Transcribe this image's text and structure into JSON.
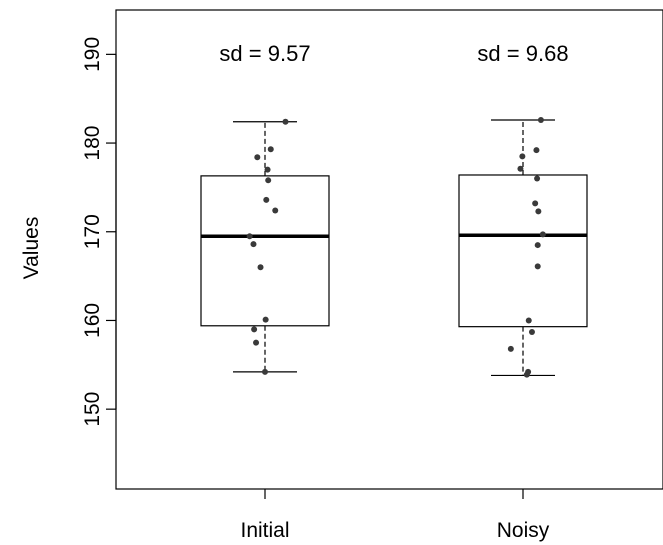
{
  "chart_data": {
    "type": "boxplot",
    "title": "",
    "xlabel": "",
    "ylabel": "Values",
    "ylim": [
      141,
      195
    ],
    "yticks": [
      150,
      160,
      170,
      180,
      190
    ],
    "grid": false,
    "legend": "none",
    "categories": [
      "Initial",
      "Noisy"
    ],
    "annotations": [
      "sd = 9.57",
      "sd = 9.68"
    ],
    "boxes": [
      {
        "name": "Initial",
        "whisker_low": 154.2,
        "q1": 159.4,
        "median": 169.5,
        "q3": 176.3,
        "whisker_high": 182.4,
        "points": [
          {
            "y": 182.4,
            "jitter": 0.32
          },
          {
            "y": 179.3,
            "jitter": 0.09
          },
          {
            "y": 178.4,
            "jitter": -0.12
          },
          {
            "y": 177.0,
            "jitter": 0.04
          },
          {
            "y": 175.8,
            "jitter": 0.05
          },
          {
            "y": 173.6,
            "jitter": 0.02
          },
          {
            "y": 172.4,
            "jitter": 0.16
          },
          {
            "y": 169.5,
            "jitter": -0.24
          },
          {
            "y": 168.6,
            "jitter": -0.18
          },
          {
            "y": 166.0,
            "jitter": -0.07
          },
          {
            "y": 160.1,
            "jitter": 0.01
          },
          {
            "y": 159.0,
            "jitter": -0.17
          },
          {
            "y": 157.5,
            "jitter": -0.14
          },
          {
            "y": 154.2,
            "jitter": 0.0
          }
        ]
      },
      {
        "name": "Noisy",
        "whisker_low": 153.8,
        "q1": 159.3,
        "median": 169.6,
        "q3": 176.4,
        "whisker_high": 182.6,
        "points": [
          {
            "y": 182.6,
            "jitter": 0.28
          },
          {
            "y": 179.2,
            "jitter": 0.21
          },
          {
            "y": 178.5,
            "jitter": -0.01
          },
          {
            "y": 177.1,
            "jitter": -0.04
          },
          {
            "y": 176.0,
            "jitter": 0.22
          },
          {
            "y": 173.2,
            "jitter": 0.19
          },
          {
            "y": 172.3,
            "jitter": 0.24
          },
          {
            "y": 169.7,
            "jitter": 0.31
          },
          {
            "y": 168.5,
            "jitter": 0.23
          },
          {
            "y": 166.1,
            "jitter": 0.23
          },
          {
            "y": 160.0,
            "jitter": 0.09
          },
          {
            "y": 158.7,
            "jitter": 0.14
          },
          {
            "y": 156.8,
            "jitter": -0.19
          },
          {
            "y": 154.2,
            "jitter": 0.08
          },
          {
            "y": 153.9,
            "jitter": 0.06
          }
        ]
      }
    ]
  }
}
